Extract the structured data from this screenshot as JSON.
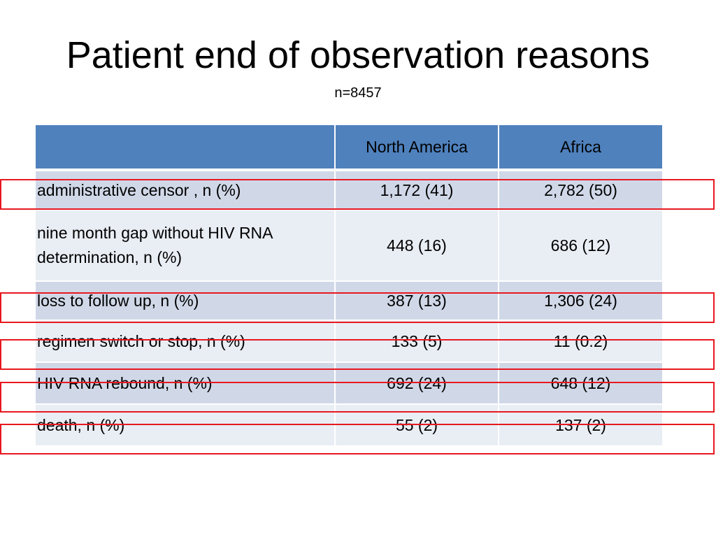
{
  "slide": {
    "title": "Patient end of observation reasons",
    "subtitle": "n=8457"
  },
  "table": {
    "headers": [
      "",
      "North America",
      "Africa"
    ],
    "rows": [
      {
        "label": "administrative censor , n (%)",
        "north_america": "1,172 (41)",
        "africa": "2,782 (50)",
        "highlighted": true
      },
      {
        "label": "nine month gap without HIV RNA determination, n (%)",
        "north_america": "448 (16)",
        "africa": "686 (12)",
        "highlighted": false
      },
      {
        "label": "loss to follow up, n (%)",
        "north_america": "387 (13)",
        "africa": "1,306 (24)",
        "highlighted": true
      },
      {
        "label": "regimen switch or stop, n (%)",
        "north_america": "133 (5)",
        "africa": "11 (0.2)",
        "highlighted": true
      },
      {
        "label": "HIV RNA rebound, n (%)",
        "north_america": "692 (24)",
        "africa": "648 (12)",
        "highlighted": true
      },
      {
        "label": "death, n (%)",
        "north_america": "55 (2)",
        "africa": "137 (2)",
        "highlighted": true
      }
    ]
  },
  "colors": {
    "header_fill": "#4f81bd",
    "row_dark": "#d0d8e8",
    "row_light": "#e9edf4",
    "highlight_border": "#e8181f"
  }
}
